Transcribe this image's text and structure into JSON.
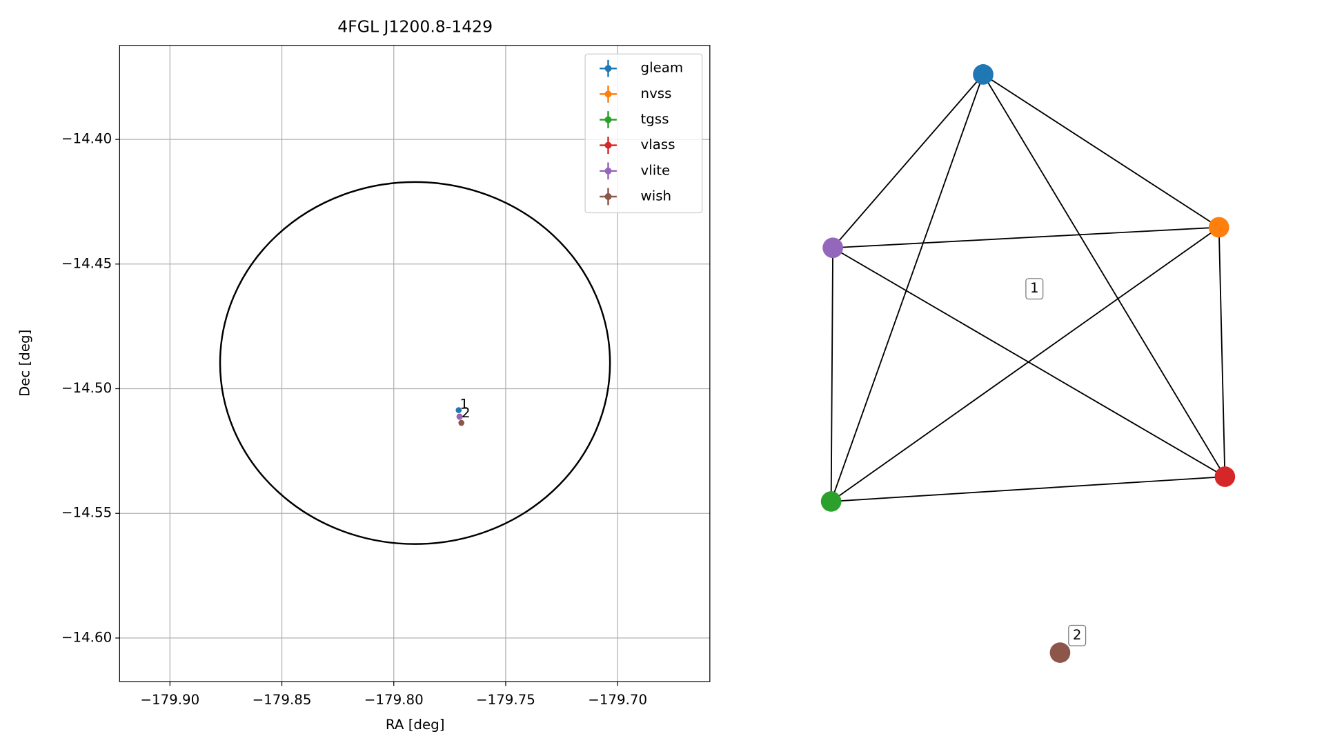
{
  "chart_data": [
    {
      "type": "scatter",
      "title": "4FGL J1200.8-1429",
      "x_label": "RA [deg]",
      "y_label": "Dec [deg]",
      "xlim": [
        -179.9225,
        -179.6588
      ],
      "ylim": [
        -14.6175,
        -14.3623
      ],
      "xticks": [
        {
          "value": -179.9,
          "label": "−179.90"
        },
        {
          "value": -179.85,
          "label": "−179.85"
        },
        {
          "value": -179.8,
          "label": "−179.80"
        },
        {
          "value": -179.75,
          "label": "−179.75"
        },
        {
          "value": -179.7,
          "label": "−179.70"
        }
      ],
      "yticks": [
        {
          "value": -14.4,
          "label": "−14.40"
        },
        {
          "value": -14.45,
          "label": "−14.45"
        },
        {
          "value": -14.5,
          "label": "−14.50"
        },
        {
          "value": -14.55,
          "label": "−14.55"
        },
        {
          "value": -14.6,
          "label": "−14.60"
        }
      ],
      "grid": true,
      "legend": "upper right",
      "ellipse": {
        "center_x": -179.7905,
        "center_y": -14.4897,
        "radius_x": 0.0871,
        "radius_y": 0.0726,
        "color": "#000000"
      },
      "series": [
        {
          "name": "gleam",
          "color": "#1f77b4",
          "x": [
            -179.771
          ],
          "values": [
            -14.5086
          ]
        },
        {
          "name": "nvss",
          "color": "#ff7f0e",
          "x": [
            -179.7706
          ],
          "values": [
            -14.5112
          ]
        },
        {
          "name": "tgss",
          "color": "#2ca02c",
          "x": [
            -179.7706
          ],
          "values": [
            -14.5112
          ]
        },
        {
          "name": "vlass",
          "color": "#d62728",
          "x": [
            -179.7706
          ],
          "values": [
            -14.5112
          ]
        },
        {
          "name": "vlite",
          "color": "#9467bd",
          "x": [
            -179.7706
          ],
          "values": [
            -14.5113
          ]
        },
        {
          "name": "wish",
          "color": "#8c564b",
          "x": [
            -179.7698
          ],
          "values": [
            -14.5137
          ]
        }
      ],
      "annotations": [
        {
          "text": "1",
          "x": -179.7705,
          "y": -14.5065
        },
        {
          "text": "2",
          "x": -179.7697,
          "y": -14.5099
        }
      ]
    },
    {
      "type": "network",
      "nodes": [
        {
          "color": "#1f77b4"
        },
        {
          "color": "#ff7f0e"
        },
        {
          "color": "#2ca02c"
        },
        {
          "color": "#d62728"
        },
        {
          "color": "#9467bd"
        },
        {
          "color": "#8c564b"
        }
      ],
      "edges": [
        [
          0,
          4
        ],
        [
          0,
          2
        ],
        [
          0,
          1
        ],
        [
          0,
          3
        ],
        [
          4,
          1
        ],
        [
          4,
          2
        ],
        [
          4,
          3
        ],
        [
          2,
          1
        ],
        [
          2,
          3
        ],
        [
          1,
          3
        ]
      ],
      "labels": [
        "1",
        "2"
      ]
    }
  ]
}
